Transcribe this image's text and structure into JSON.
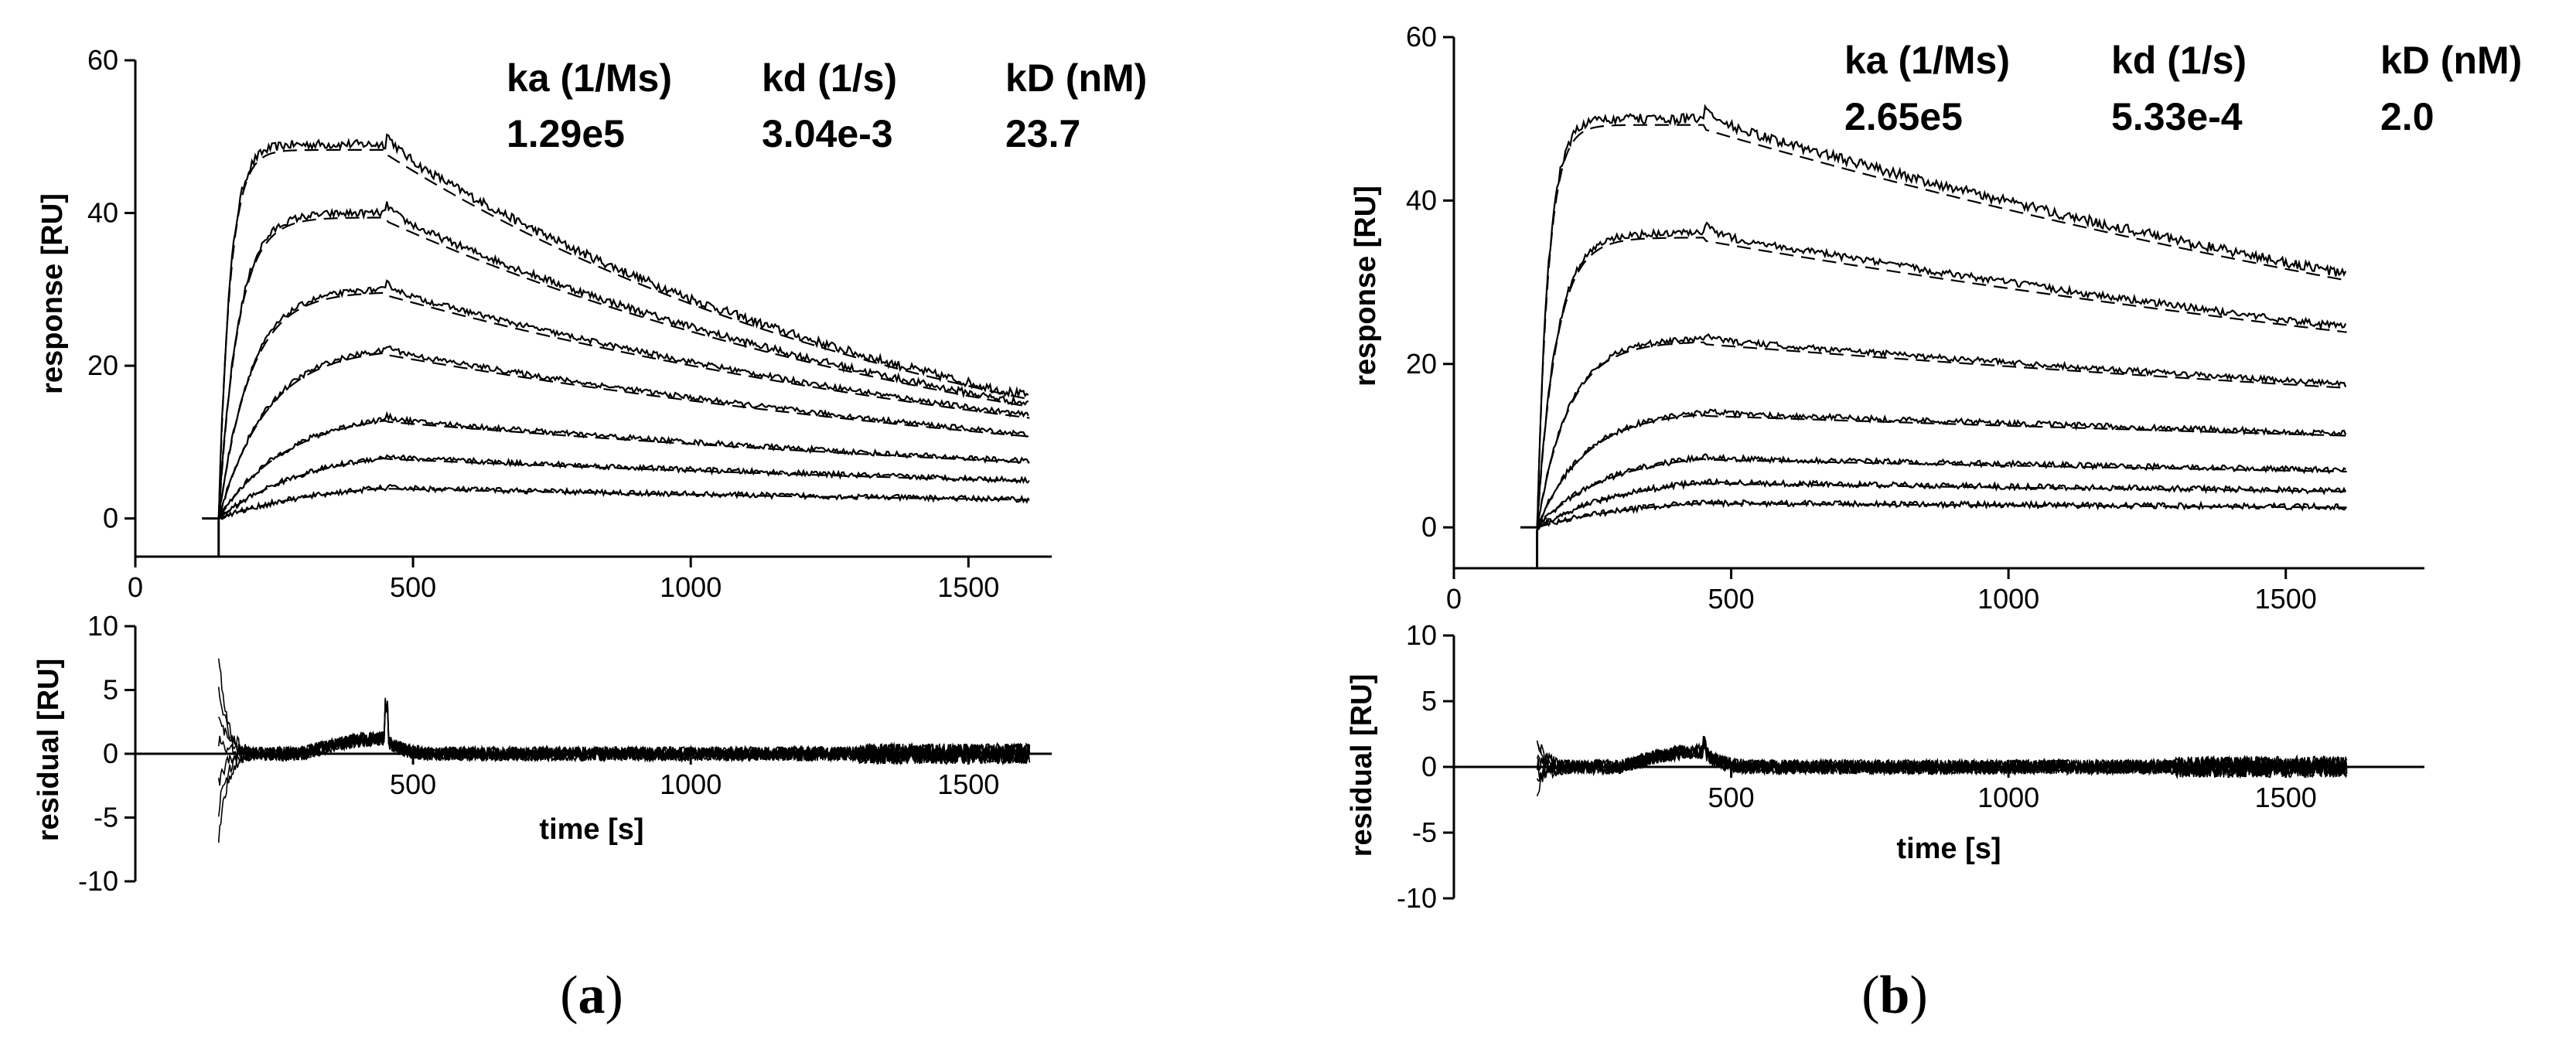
{
  "figure": {
    "panels": [
      {
        "id": "a",
        "label_open": "(",
        "label_letter": "a",
        "label_close": ")",
        "kinetics": {
          "headers": [
            "ka (1/Ms)",
            "kd (1/s)",
            "kD (nM)"
          ],
          "values": [
            "1.29e5",
            "3.04e-3",
            "23.7"
          ]
        }
      },
      {
        "id": "b",
        "label_open": "(",
        "label_letter": "b",
        "label_close": ")",
        "kinetics": {
          "headers": [
            "ka (1/Ms)",
            "kd (1/s)",
            "kD (nM)"
          ],
          "values": [
            "2.65e5",
            "5.33e-4",
            "2.0"
          ]
        }
      }
    ]
  },
  "chart_data": [
    {
      "panel": "a",
      "chart": "sensorgram",
      "type": "line",
      "xlabel": "",
      "ylabel": "response [RU]",
      "xlim": [
        0,
        1650
      ],
      "ylim": [
        -5,
        60
      ],
      "xticks": [
        0,
        500,
        1000,
        1500
      ],
      "yticks": [
        0,
        20,
        40,
        60
      ],
      "injection_start_s": 150,
      "injection_end_s": 450,
      "end_time_s": 1610,
      "series": [
        {
          "name": "curve 1",
          "end_of_association_RU": 49,
          "end_RU": 16
        },
        {
          "name": "curve 2",
          "end_of_association_RU": 40,
          "end_RU": 15
        },
        {
          "name": "curve 3",
          "end_of_association_RU": 30,
          "end_RU": 13.5
        },
        {
          "name": "curve 4",
          "end_of_association_RU": 22,
          "end_RU": 11
        },
        {
          "name": "curve 5",
          "end_of_association_RU": 13,
          "end_RU": 7.5
        },
        {
          "name": "curve 6",
          "end_of_association_RU": 8,
          "end_RU": 5
        },
        {
          "name": "curve 7",
          "end_of_association_RU": 4,
          "end_RU": 2.5
        }
      ],
      "fit": "dashed 1:1 global fit lines"
    },
    {
      "panel": "a",
      "chart": "residuals",
      "type": "line",
      "xlabel": "time [s]",
      "ylabel": "residual [RU]",
      "xlim": [
        0,
        1650
      ],
      "ylim": [
        -10,
        10
      ],
      "xticks": [
        500,
        1000,
        1500
      ],
      "yticks": [
        -10,
        -5,
        0,
        5,
        10
      ],
      "start_s": 150,
      "end_s": 1610
    },
    {
      "panel": "b",
      "chart": "sensorgram",
      "type": "line",
      "xlabel": "",
      "ylabel": "response [RU]",
      "xlim": [
        0,
        1750
      ],
      "ylim": [
        -5,
        60
      ],
      "xticks": [
        0,
        500,
        1000,
        1500
      ],
      "yticks": [
        0,
        20,
        40,
        60
      ],
      "injection_start_s": 150,
      "injection_end_s": 450,
      "end_time_s": 1610,
      "series": [
        {
          "name": "curve 1",
          "end_of_association_RU": 50,
          "end_RU": 31
        },
        {
          "name": "curve 2",
          "end_of_association_RU": 36,
          "end_RU": 24.5
        },
        {
          "name": "curve 3",
          "end_of_association_RU": 23,
          "end_RU": 17.5
        },
        {
          "name": "curve 4",
          "end_of_association_RU": 14,
          "end_RU": 11.5
        },
        {
          "name": "curve 5",
          "end_of_association_RU": 8.5,
          "end_RU": 7
        },
        {
          "name": "curve 6",
          "end_of_association_RU": 5.5,
          "end_RU": 4.5
        },
        {
          "name": "curve 7",
          "end_of_association_RU": 3,
          "end_RU": 2.5
        }
      ],
      "fit": "dashed 1:1 global fit lines"
    },
    {
      "panel": "b",
      "chart": "residuals",
      "type": "line",
      "xlabel": "time [s]",
      "ylabel": "residual [RU]",
      "xlim": [
        0,
        1750
      ],
      "ylim": [
        -10,
        10
      ],
      "xticks": [
        500,
        1000,
        1500
      ],
      "yticks": [
        -10,
        -5,
        0,
        5,
        10
      ],
      "start_s": 150,
      "end_s": 1610
    }
  ]
}
